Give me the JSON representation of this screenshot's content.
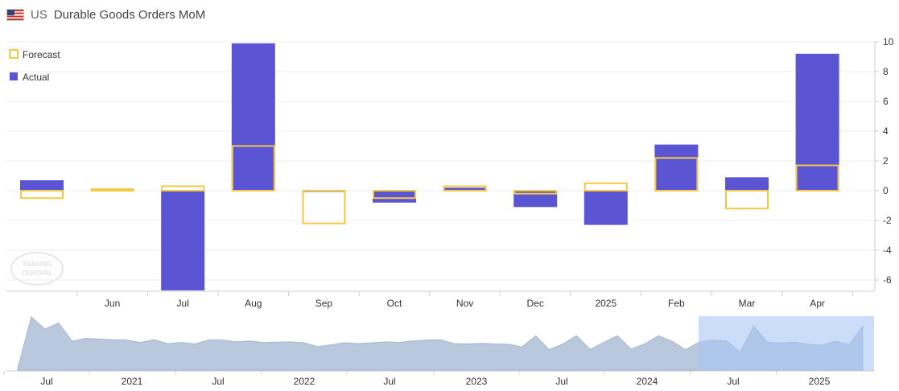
{
  "header": {
    "country": "US",
    "title": "Durable Goods Orders MoM"
  },
  "watermark": "TRADING CENTRAL",
  "chart_data": {
    "type": "bar",
    "title": "Durable Goods Orders MoM",
    "categories": [
      "",
      "Jun",
      "Jul",
      "Aug",
      "Sep",
      "Oct",
      "Nov",
      "Dec",
      "2025",
      "Feb",
      "Mar",
      "Apr"
    ],
    "series": [
      {
        "name": "Forecast",
        "style": "outline",
        "color": "#f5c842",
        "values": [
          -0.5,
          0.1,
          0.3,
          3.0,
          -2.2,
          -0.5,
          0.3,
          -0.2,
          0.5,
          2.2,
          -1.2,
          1.7
        ]
      },
      {
        "name": "Actual",
        "style": "filled",
        "color": "#5b55d4",
        "values": [
          0.7,
          0.1,
          -6.7,
          9.9,
          0.0,
          -0.8,
          0.2,
          -1.1,
          -2.3,
          3.1,
          0.9,
          9.2
        ]
      }
    ],
    "ylim": [
      -6.7,
      10
    ],
    "yticks": [
      10,
      8,
      6,
      4,
      2,
      0,
      -2,
      -4,
      -6
    ],
    "legend": [
      "Forecast",
      "Actual"
    ],
    "legend_position": "top-left",
    "y_axis_position": "right",
    "navigator": {
      "type": "area",
      "color": "#b9c8dc",
      "selection_color": "#a9c7f5",
      "labels": [
        "Jul",
        "2021",
        "Jul",
        "2022",
        "Jul",
        "2023",
        "Jul",
        "2024",
        "Jul",
        "2025"
      ],
      "values": [
        -5,
        12,
        8,
        10,
        4,
        5,
        4.7,
        4.5,
        4.4,
        3.6,
        4.5,
        3.2,
        3.6,
        3.1,
        4.4,
        4.4,
        3.8,
        4.1,
        3.6,
        3.7,
        3.8,
        3.5,
        2.2,
        2.8,
        3.5,
        3.2,
        3.5,
        3.8,
        3.6,
        4.1,
        4.4,
        4.5,
        3.2,
        3.1,
        3.3,
        3.1,
        3.0,
        2.1,
        5.8,
        1.2,
        3.1,
        5.8,
        1.3,
        3.6,
        5.8,
        1.4,
        3.1,
        5.8,
        4.0,
        1.2,
        3.7,
        4.3,
        4.1,
        0.4,
        9.0,
        3.7,
        3.4,
        3.7,
        3.0,
        2.7,
        4.0,
        3.0,
        9.0
      ]
    }
  }
}
